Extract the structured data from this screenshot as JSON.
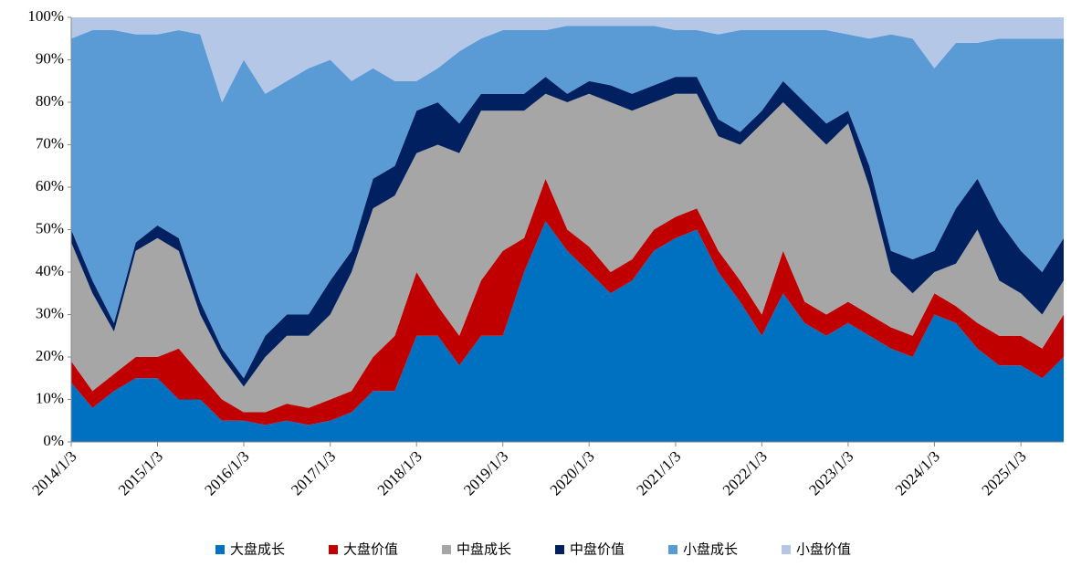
{
  "chart_data": {
    "type": "stacked_area",
    "x": [
      "2014/1/3",
      "2014/4/3",
      "2014/7/3",
      "2014/10/3",
      "2015/1/3",
      "2015/4/3",
      "2015/7/3",
      "2015/10/3",
      "2016/1/3",
      "2016/4/3",
      "2016/7/3",
      "2016/10/3",
      "2017/1/3",
      "2017/4/3",
      "2017/7/3",
      "2017/10/3",
      "2018/1/3",
      "2018/4/3",
      "2018/7/3",
      "2018/10/3",
      "2019/1/3",
      "2019/4/3",
      "2019/7/3",
      "2019/10/3",
      "2020/1/3",
      "2020/4/3",
      "2020/7/3",
      "2020/10/3",
      "2021/1/3",
      "2021/4/3",
      "2021/7/3",
      "2021/10/3",
      "2022/1/3",
      "2022/4/3",
      "2022/7/3",
      "2022/10/3",
      "2023/1/3",
      "2023/4/3",
      "2023/7/3",
      "2023/10/3",
      "2024/1/3",
      "2024/4/3",
      "2024/7/3",
      "2024/10/3",
      "2025/1/3",
      "2025/4/3",
      "2025/7/3"
    ],
    "xlim": [
      "2014/1/3",
      "2025/7/3"
    ],
    "xticks": [
      "2014/1/3",
      "2015/1/3",
      "2016/1/3",
      "2017/1/3",
      "2018/1/3",
      "2019/1/3",
      "2020/1/3",
      "2021/1/3",
      "2022/1/3",
      "2023/1/3",
      "2024/1/3",
      "2025/1/3"
    ],
    "ylim": [
      0,
      100
    ],
    "yticks": [
      {
        "value": 0,
        "label": "0%"
      },
      {
        "value": 10,
        "label": "10%"
      },
      {
        "value": 20,
        "label": "20%"
      },
      {
        "value": 30,
        "label": "30%"
      },
      {
        "value": 40,
        "label": "40%"
      },
      {
        "value": 50,
        "label": "50%"
      },
      {
        "value": 60,
        "label": "60%"
      },
      {
        "value": 70,
        "label": "70%"
      },
      {
        "value": 80,
        "label": "80%"
      },
      {
        "value": 90,
        "label": "90%"
      },
      {
        "value": 100,
        "label": "100%"
      }
    ],
    "legend": "bottom",
    "series": [
      {
        "name": "大盘成长",
        "color": "#0070c0",
        "values": [
          14,
          8,
          12,
          15,
          15,
          10,
          10,
          5,
          5,
          4,
          5,
          4,
          5,
          7,
          12,
          12,
          25,
          25,
          18,
          25,
          25,
          40,
          52,
          45,
          40,
          35,
          38,
          45,
          48,
          50,
          40,
          33,
          25,
          35,
          28,
          25,
          28,
          25,
          22,
          20,
          30,
          28,
          22,
          18,
          18,
          15,
          20
        ]
      },
      {
        "name": "大盘价值",
        "color": "#c00000",
        "values": [
          5,
          4,
          4,
          5,
          5,
          12,
          6,
          5,
          2,
          3,
          4,
          4,
          5,
          5,
          8,
          13,
          15,
          7,
          7,
          13,
          20,
          8,
          10,
          5,
          6,
          5,
          5,
          5,
          5,
          5,
          5,
          5,
          5,
          10,
          5,
          5,
          5,
          5,
          5,
          5,
          5,
          4,
          6,
          7,
          7,
          7,
          10
        ]
      },
      {
        "name": "中盘成长",
        "color": "#a6a6a6",
        "values": [
          28,
          23,
          10,
          25,
          28,
          23,
          14,
          10,
          6,
          13,
          16,
          17,
          20,
          28,
          35,
          33,
          28,
          38,
          43,
          40,
          33,
          30,
          20,
          30,
          36,
          40,
          35,
          30,
          29,
          27,
          27,
          32,
          45,
          35,
          42,
          40,
          42,
          30,
          13,
          10,
          5,
          10,
          22,
          13,
          10,
          8,
          8
        ]
      },
      {
        "name": "中盘价值",
        "color": "#002060",
        "values": [
          3,
          3,
          2,
          2,
          3,
          3,
          3,
          2,
          2,
          5,
          5,
          5,
          8,
          5,
          7,
          7,
          10,
          10,
          7,
          4,
          4,
          4,
          4,
          2,
          3,
          4,
          4,
          4,
          4,
          4,
          4,
          3,
          3,
          5,
          5,
          5,
          3,
          5,
          5,
          8,
          5,
          13,
          12,
          14,
          10,
          10,
          10
        ]
      },
      {
        "name": "小盘成长",
        "color": "#5b9bd5",
        "values": [
          45,
          59,
          69,
          49,
          45,
          49,
          63,
          58,
          75,
          57,
          55,
          58,
          52,
          40,
          26,
          20,
          7,
          8,
          17,
          13,
          15,
          15,
          11,
          16,
          13,
          14,
          16,
          14,
          11,
          11,
          20,
          24,
          19,
          12,
          17,
          22,
          18,
          30,
          51,
          52,
          43,
          39,
          32,
          43,
          50,
          55,
          47
        ]
      },
      {
        "name": "小盘价值",
        "color": "#b4c7e7",
        "values": [
          5,
          3,
          3,
          4,
          4,
          3,
          4,
          20,
          10,
          18,
          15,
          12,
          10,
          15,
          12,
          15,
          15,
          12,
          8,
          5,
          3,
          3,
          3,
          2,
          2,
          2,
          2,
          2,
          3,
          3,
          4,
          3,
          3,
          3,
          3,
          3,
          4,
          5,
          4,
          5,
          12,
          6,
          6,
          5,
          5,
          5,
          5
        ]
      }
    ]
  }
}
